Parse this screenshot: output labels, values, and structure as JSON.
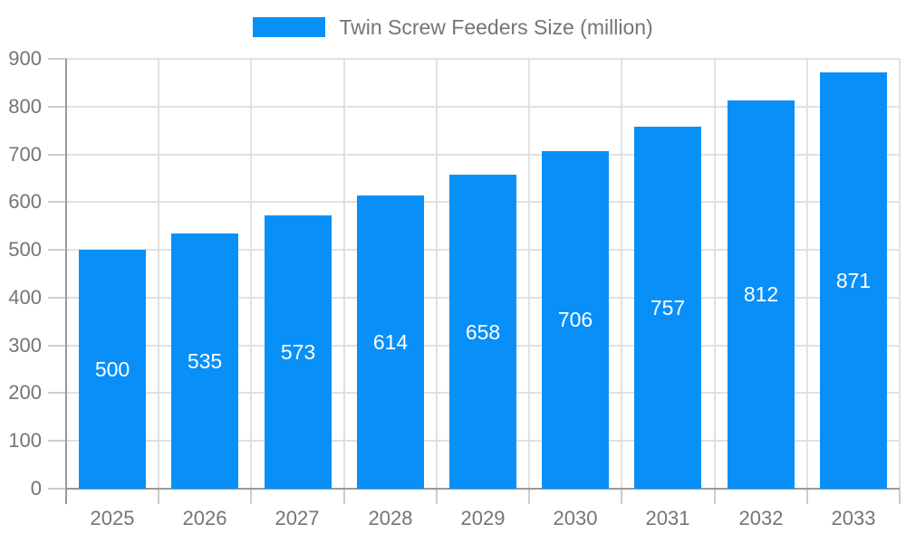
{
  "legend": {
    "label": "Twin Screw Feeders Size (million)",
    "swatch_color": "#0890F8"
  },
  "chart_data": {
    "type": "bar",
    "title": "Twin Screw Feeders Size (million)",
    "categories": [
      "2025",
      "2026",
      "2027",
      "2028",
      "2029",
      "2030",
      "2031",
      "2032",
      "2033"
    ],
    "values": [
      500,
      535,
      573,
      614,
      658,
      706,
      757,
      812,
      871
    ],
    "xlabel": "",
    "ylabel": "",
    "ylim": [
      0,
      900
    ],
    "ytick_step": 100,
    "grid": true,
    "legend_position": "top-center",
    "value_labels": "inside-center",
    "colors": {
      "bar": "#0890F8",
      "value_label": "#FFFFFF",
      "axis_text": "#757575",
      "axis_line": "#999999",
      "gridline": "#E1E1E1",
      "tick": "#CCCCCC",
      "background": "#FFFFFF"
    }
  }
}
